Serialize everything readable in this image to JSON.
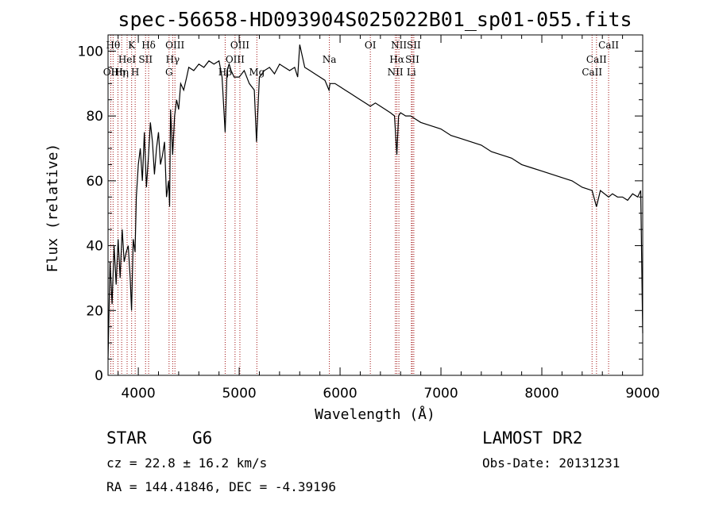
{
  "chart_data": {
    "type": "line",
    "title": "spec-56658-HD093904S025022B01_sp01-055.fits",
    "xlabel": "Wavelength (Å)",
    "ylabel": "Flux (relative)",
    "xlim": [
      3700,
      9000
    ],
    "ylim": [
      0,
      105
    ],
    "xticks": [
      4000,
      5000,
      6000,
      7000,
      8000,
      9000
    ],
    "yticks": [
      0,
      20,
      40,
      60,
      80,
      100
    ],
    "grid": false,
    "series": [
      {
        "x": [
          3700,
          3720,
          3740,
          3760,
          3780,
          3800,
          3820,
          3840,
          3860,
          3880,
          3900,
          3920,
          3933,
          3950,
          3968,
          3980,
          4000,
          4020,
          4040,
          4060,
          4080,
          4102,
          4120,
          4140,
          4160,
          4180,
          4200,
          4220,
          4240,
          4260,
          4280,
          4300,
          4310,
          4320,
          4340,
          4360,
          4380,
          4400,
          4420,
          4450,
          4480,
          4500,
          4550,
          4600,
          4650,
          4700,
          4750,
          4800,
          4830,
          4861,
          4880,
          4900,
          4920,
          4950,
          5000,
          5050,
          5100,
          5150,
          5172,
          5183,
          5200,
          5250,
          5300,
          5350,
          5400,
          5450,
          5500,
          5550,
          5580,
          5600,
          5650,
          5700,
          5750,
          5800,
          5850,
          5890,
          5900,
          5950,
          6000,
          6050,
          6100,
          6150,
          6200,
          6250,
          6300,
          6350,
          6400,
          6450,
          6500,
          6540,
          6563,
          6580,
          6600,
          6650,
          6700,
          6750,
          6800,
          6900,
          7000,
          7100,
          7200,
          7300,
          7400,
          7500,
          7600,
          7700,
          7800,
          7900,
          8000,
          8100,
          8200,
          8300,
          8400,
          8498,
          8542,
          8580,
          8662,
          8700,
          8750,
          8800,
          8850,
          8900,
          8950,
          8980,
          9000
        ],
        "y": [
          5,
          35,
          22,
          40,
          28,
          42,
          30,
          45,
          35,
          38,
          40,
          30,
          20,
          42,
          38,
          55,
          65,
          70,
          60,
          75,
          58,
          68,
          78,
          72,
          62,
          70,
          75,
          65,
          68,
          72,
          55,
          60,
          52,
          82,
          68,
          80,
          85,
          82,
          90,
          88,
          92,
          95,
          94,
          96,
          95,
          97,
          96,
          97,
          92,
          75,
          94,
          96,
          94,
          92,
          92,
          94,
          90,
          88,
          72,
          80,
          92,
          94,
          95,
          93,
          96,
          95,
          94,
          95,
          92,
          102,
          95,
          94,
          93,
          92,
          91,
          88,
          90,
          90,
          89,
          88,
          87,
          86,
          85,
          84,
          83,
          84,
          83,
          82,
          81,
          80,
          68,
          80,
          81,
          80,
          80,
          79,
          78,
          77,
          76,
          74,
          73,
          72,
          71,
          69,
          68,
          67,
          65,
          64,
          63,
          62,
          61,
          60,
          58,
          57,
          52,
          57,
          55,
          56,
          55,
          55,
          54,
          56,
          55,
          57,
          13
        ],
        "color": "#000000"
      }
    ],
    "line_markers": [
      {
        "x": 3727,
        "label": "OII",
        "row": 2
      },
      {
        "x": 3750,
        "label": "Hθ",
        "row": 0
      },
      {
        "x": 3798,
        "label": "Hη",
        "row": 2
      },
      {
        "x": 3835,
        "label": "Hη",
        "row": 2
      },
      {
        "x": 3889,
        "label": "HeI",
        "row": 1
      },
      {
        "x": 3934,
        "label": "K",
        "row": 0
      },
      {
        "x": 3969,
        "label": "H",
        "row": 2
      },
      {
        "x": 4072,
        "label": "SII",
        "row": 1
      },
      {
        "x": 4102,
        "label": "Hδ",
        "row": 0
      },
      {
        "x": 4305,
        "label": "G",
        "row": 2
      },
      {
        "x": 4341,
        "label": "Hγ",
        "row": 1
      },
      {
        "x": 4363,
        "label": "OIII",
        "row": 0
      },
      {
        "x": 4861,
        "label": "Hβ",
        "row": 2
      },
      {
        "x": 4959,
        "label": "OIII",
        "row": 1
      },
      {
        "x": 5007,
        "label": "OIII",
        "row": 0
      },
      {
        "x": 5175,
        "label": "Mg",
        "row": 2
      },
      {
        "x": 5894,
        "label": "Na",
        "row": 1
      },
      {
        "x": 6300,
        "label": "OI",
        "row": 0
      },
      {
        "x": 6548,
        "label": "NII",
        "row": 2
      },
      {
        "x": 6563,
        "label": "Hα",
        "row": 1
      },
      {
        "x": 6583,
        "label": "NII",
        "row": 0
      },
      {
        "x": 6707,
        "label": "Li",
        "row": 2
      },
      {
        "x": 6716,
        "label": "SII",
        "row": 1
      },
      {
        "x": 6731,
        "label": "SII",
        "row": 0
      },
      {
        "x": 8498,
        "label": "CaII",
        "row": 2
      },
      {
        "x": 8542,
        "label": "CaII",
        "row": 1
      },
      {
        "x": 8662,
        "label": "CaII",
        "row": 0
      }
    ]
  },
  "info": {
    "object_class": "STAR",
    "subclass": "G6",
    "survey": "LAMOST DR2",
    "redshift_text": "cz = 22.8 ± 16.2 km/s",
    "obs_date_text": "Obs-Date: 20131231",
    "coords_text": "RA = 144.41846, DEC =  -4.39196"
  },
  "colors": {
    "spectrum": "#000000",
    "line_marker": "#a01010",
    "background": "#ffffff"
  }
}
